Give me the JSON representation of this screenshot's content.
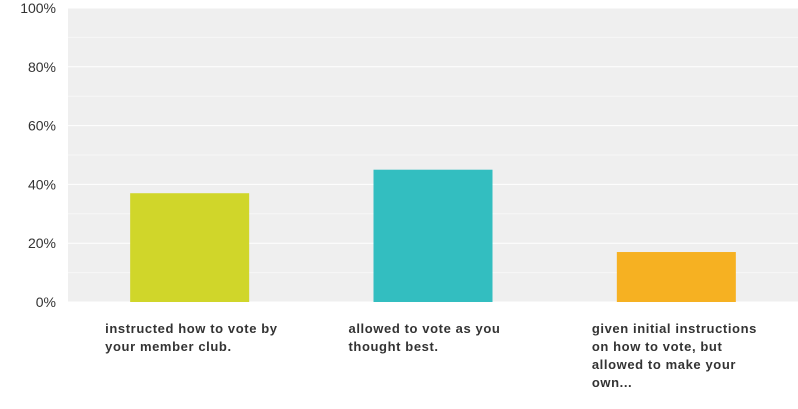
{
  "chart_data": {
    "type": "bar",
    "categories": [
      "instructed how to vote by your member club.",
      "allowed to vote as you thought best.",
      "given initial instructions on how to vote, but allowed to make your own..."
    ],
    "values": [
      37,
      45,
      17
    ],
    "ylim": [
      0,
      100
    ],
    "yticks": [
      "0%",
      "20%",
      "40%",
      "60%",
      "80%",
      "100%"
    ],
    "colors": [
      "#d0d62a",
      "#33bec0",
      "#f6b122"
    ],
    "plot_background": "#efefef",
    "grid": true
  }
}
